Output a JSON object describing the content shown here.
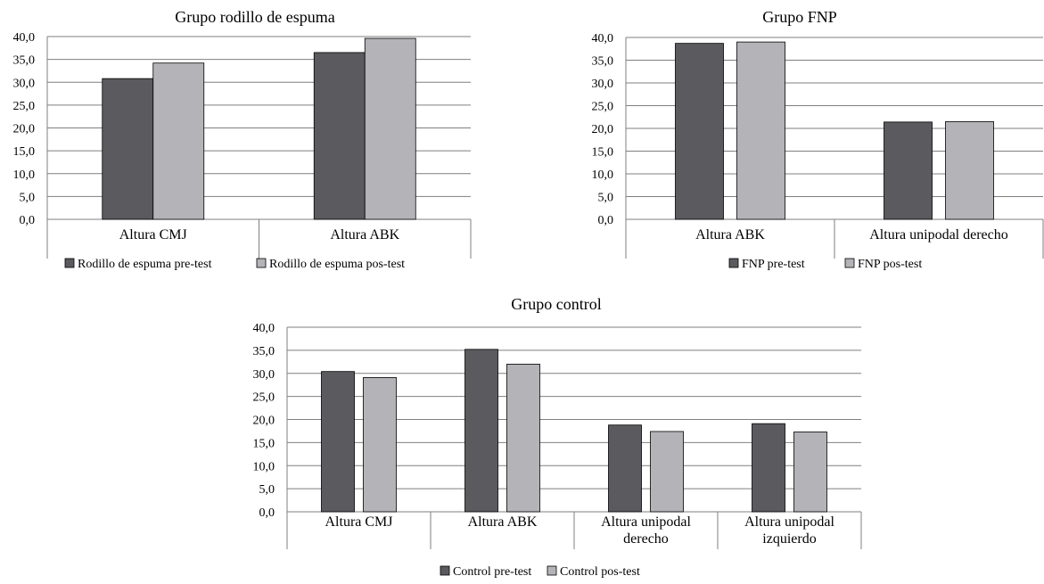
{
  "colors": {
    "pre": "#5b5a5f",
    "post": "#b4b3b8",
    "bar_stroke": "#000000",
    "grid": "#7f7f7f",
    "axis": "#7f7f7f"
  },
  "chart_data": [
    {
      "type": "bar",
      "title": "Grupo rodillo de espuma",
      "categories": [
        [
          "Altura CMJ"
        ],
        [
          "Altura ABK"
        ]
      ],
      "series": [
        {
          "name": "Rodillo de espuma pre-test",
          "values": [
            30.8,
            36.5
          ]
        },
        {
          "name": "Rodillo de espuma pos-test",
          "values": [
            34.2,
            39.6
          ]
        }
      ],
      "ylim": [
        0,
        40
      ],
      "yticks": [
        "0,0",
        "5,0",
        "10,0",
        "15,0",
        "20,0",
        "25,0",
        "30,0",
        "35,0",
        "40,0"
      ],
      "grid": true,
      "legend": "bottom"
    },
    {
      "type": "bar",
      "title": "Grupo FNP",
      "categories": [
        [
          "Altura ABK"
        ],
        [
          "Altura unipodal derecho"
        ]
      ],
      "series": [
        {
          "name": "FNP pre-test",
          "values": [
            38.7,
            21.4
          ]
        },
        {
          "name": "FNP pos-test",
          "values": [
            39.0,
            21.5
          ]
        }
      ],
      "ylim": [
        0,
        40
      ],
      "yticks": [
        "0,0",
        "5,0",
        "10,0",
        "15,0",
        "20,0",
        "25,0",
        "30,0",
        "35,0",
        "40,0"
      ],
      "grid": true,
      "legend": "bottom"
    },
    {
      "type": "bar",
      "title": "Grupo control",
      "categories": [
        [
          "Altura CMJ"
        ],
        [
          "Altura ABK"
        ],
        [
          "Altura unipodal",
          "derecho"
        ],
        [
          "Altura unipodal",
          "izquierdo"
        ]
      ],
      "series": [
        {
          "name": "Control pre-test",
          "values": [
            30.4,
            35.2,
            18.8,
            19.1
          ]
        },
        {
          "name": "Control pos-test",
          "values": [
            29.1,
            32.0,
            17.4,
            17.3
          ]
        }
      ],
      "ylim": [
        0,
        40
      ],
      "yticks": [
        "0,0",
        "5,0",
        "10,0",
        "15,0",
        "20,0",
        "25,0",
        "30,0",
        "35,0",
        "40,0"
      ],
      "grid": true,
      "legend": "bottom"
    }
  ]
}
